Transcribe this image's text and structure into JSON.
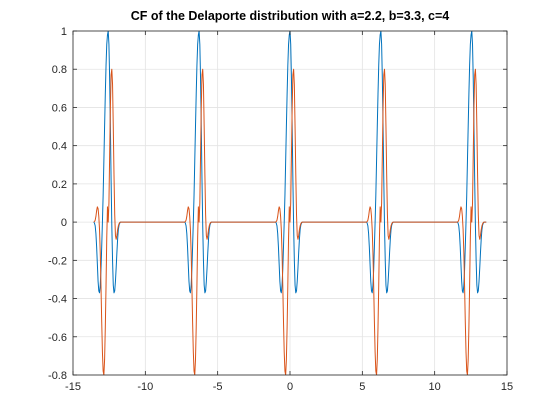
{
  "chart_data": {
    "type": "line",
    "title": "CF of the Delaporte distribution with a=2.2, b=3.3, c=4",
    "xlabel": "",
    "ylabel": "",
    "xlim": [
      -15,
      15
    ],
    "ylim": [
      -0.8,
      1
    ],
    "x_ticks": [
      -15,
      -10,
      -5,
      0,
      5,
      10,
      15
    ],
    "y_ticks": [
      -0.8,
      -0.6,
      -0.4,
      -0.2,
      0,
      0.2,
      0.4,
      0.6,
      0.8,
      1
    ],
    "x_tick_labels": [
      "-15",
      "-10",
      "-5",
      "0",
      "5",
      "10",
      "15"
    ],
    "y_tick_labels": [
      "-0.8",
      "-0.6",
      "-0.4",
      "-0.2",
      "0",
      "0.2",
      "0.4",
      "0.6",
      "0.8",
      "1"
    ],
    "grid": true,
    "x_period": 6.2832,
    "series": [
      {
        "color": "#0072BD",
        "component": "real",
        "samples": [
          [
            -1.0,
            0.0
          ],
          [
            -0.95,
            -0.005
          ],
          [
            -0.9,
            -0.02
          ],
          [
            -0.85,
            -0.06
          ],
          [
            -0.8,
            -0.13
          ],
          [
            -0.75,
            -0.22
          ],
          [
            -0.7,
            -0.31
          ],
          [
            -0.65,
            -0.36
          ],
          [
            -0.6,
            -0.37
          ],
          [
            -0.55,
            -0.33
          ],
          [
            -0.5,
            -0.25
          ],
          [
            -0.45,
            -0.13
          ],
          [
            -0.4,
            0.0
          ],
          [
            -0.35,
            0.14
          ],
          [
            -0.3,
            0.32
          ],
          [
            -0.25,
            0.5
          ],
          [
            -0.2,
            0.67
          ],
          [
            -0.15,
            0.82
          ],
          [
            -0.1,
            0.93
          ],
          [
            -0.05,
            0.98
          ],
          [
            0.0,
            1.0
          ],
          [
            0.05,
            0.93
          ],
          [
            0.1,
            0.75
          ],
          [
            0.15,
            0.5
          ],
          [
            0.2,
            0.22
          ],
          [
            0.25,
            -0.02
          ],
          [
            0.3,
            -0.2
          ],
          [
            0.35,
            -0.33
          ],
          [
            0.4,
            -0.37
          ],
          [
            0.45,
            -0.36
          ],
          [
            0.5,
            -0.31
          ],
          [
            0.55,
            -0.24
          ],
          [
            0.6,
            -0.16
          ],
          [
            0.65,
            -0.09
          ],
          [
            0.7,
            -0.04
          ],
          [
            0.75,
            -0.015
          ],
          [
            0.8,
            -0.005
          ],
          [
            0.85,
            0.0
          ],
          [
            1.0,
            0.0
          ]
        ]
      },
      {
        "color": "#D95319",
        "component": "imaginary",
        "samples": [
          [
            -1.0,
            0.0
          ],
          [
            -0.95,
            0.003
          ],
          [
            -0.9,
            0.01
          ],
          [
            -0.85,
            0.03
          ],
          [
            -0.8,
            0.06
          ],
          [
            -0.75,
            0.08
          ],
          [
            -0.7,
            0.07
          ],
          [
            -0.65,
            0.03
          ],
          [
            -0.6,
            -0.04
          ],
          [
            -0.55,
            -0.16
          ],
          [
            -0.5,
            -0.33
          ],
          [
            -0.45,
            -0.52
          ],
          [
            -0.4,
            -0.68
          ],
          [
            -0.35,
            -0.78
          ],
          [
            -0.3,
            -0.8
          ],
          [
            -0.25,
            -0.72
          ],
          [
            -0.2,
            -0.55
          ],
          [
            -0.15,
            -0.33
          ],
          [
            -0.1,
            -0.08
          ],
          [
            -0.05,
            0.08
          ],
          [
            0.0,
            0.0
          ],
          [
            0.05,
            0.1
          ],
          [
            0.1,
            0.35
          ],
          [
            0.15,
            0.6
          ],
          [
            0.2,
            0.77
          ],
          [
            0.25,
            0.8
          ],
          [
            0.3,
            0.72
          ],
          [
            0.35,
            0.5
          ],
          [
            0.4,
            0.25
          ],
          [
            0.45,
            0.04
          ],
          [
            0.5,
            -0.07
          ],
          [
            0.55,
            -0.09
          ],
          [
            0.6,
            -0.07
          ],
          [
            0.65,
            -0.04
          ],
          [
            0.7,
            -0.02
          ],
          [
            0.75,
            -0.008
          ],
          [
            0.8,
            -0.002
          ],
          [
            0.85,
            0.0
          ],
          [
            1.0,
            0.0
          ]
        ]
      }
    ]
  }
}
